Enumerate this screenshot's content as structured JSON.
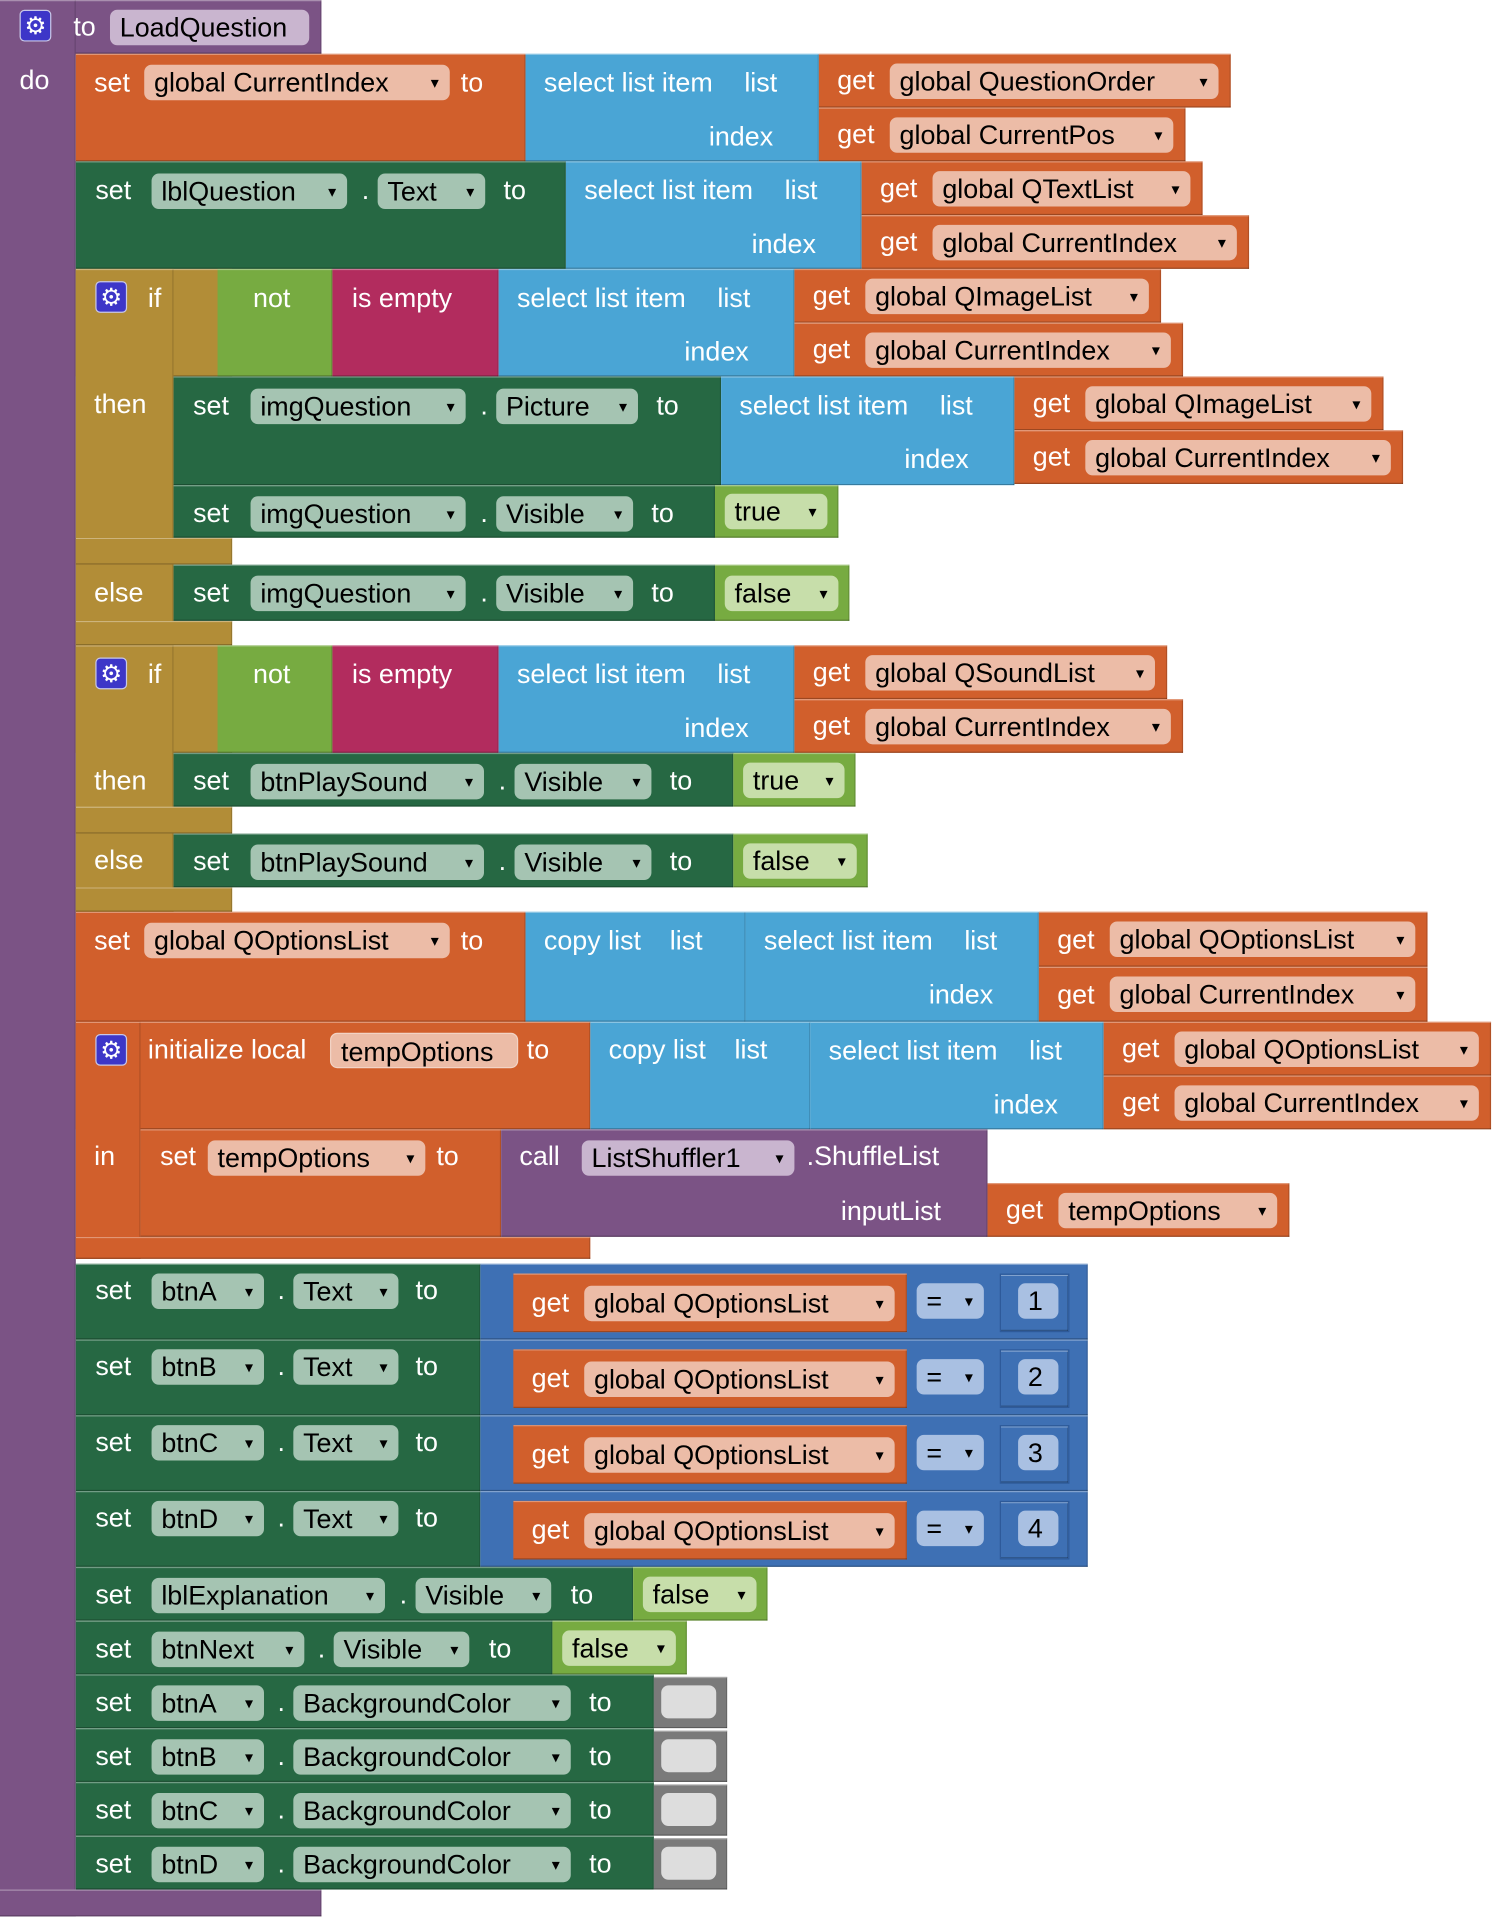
{
  "procedure": {
    "keyword": "to",
    "name": "LoadQuestion",
    "do": "do"
  },
  "kw": {
    "set": "set",
    "to": "to",
    "get": "get",
    "dot": ".",
    "select_list_item": "select list item",
    "list": "list",
    "index": "index",
    "if": "if",
    "then": "then",
    "else": "else",
    "not": "not",
    "is_empty": "is empty",
    "copy_list": "copy list",
    "initialize_local": "initialize local",
    "in": "in",
    "call": "call",
    "input_list": "inputList",
    "arrow": "▾",
    "gear": "⚙"
  },
  "s1": {
    "var": "global CurrentIndex",
    "list": "global QuestionOrder",
    "index": "global CurrentPos"
  },
  "s2": {
    "component": "lblQuestion",
    "property": "Text",
    "list": "global QTextList",
    "index": "global CurrentIndex"
  },
  "if1": {
    "list": "global QImageList",
    "index": "global CurrentIndex",
    "then1": {
      "component": "imgQuestion",
      "property": "Picture",
      "list": "global QImageList",
      "index": "global CurrentIndex"
    },
    "then2": {
      "component": "imgQuestion",
      "property": "Visible",
      "value": "true"
    },
    "else1": {
      "component": "imgQuestion",
      "property": "Visible",
      "value": "false"
    }
  },
  "if2": {
    "list": "global QSoundList",
    "index": "global CurrentIndex",
    "then1": {
      "component": "btnPlaySound",
      "property": "Visible",
      "value": "true"
    },
    "else1": {
      "component": "btnPlaySound",
      "property": "Visible",
      "value": "false"
    }
  },
  "s5": {
    "var": "global QOptionsList",
    "list": "global QOptionsList",
    "index": "global CurrentIndex"
  },
  "local": {
    "name": "tempOptions",
    "list": "global QOptionsList",
    "index": "global CurrentIndex",
    "set_var": "tempOptions",
    "call_component": "ListShuffler1",
    "call_method": ".ShuffleList",
    "arg": "tempOptions"
  },
  "text_rows": [
    {
      "component": "btnA",
      "property": "Text",
      "list": "global QOptionsList",
      "op": "=",
      "number": "1"
    },
    {
      "component": "btnB",
      "property": "Text",
      "list": "global QOptionsList",
      "op": "=",
      "number": "2"
    },
    {
      "component": "btnC",
      "property": "Text",
      "list": "global QOptionsList",
      "op": "=",
      "number": "3"
    },
    {
      "component": "btnD",
      "property": "Text",
      "list": "global QOptionsList",
      "op": "=",
      "number": "4"
    }
  ],
  "vis_rows": [
    {
      "component": "lblExplanation",
      "property": "Visible",
      "value": "false"
    },
    {
      "component": "btnNext",
      "property": "Visible",
      "value": "false"
    }
  ],
  "color_rows": [
    {
      "component": "btnA",
      "property": "BackgroundColor",
      "color": "#dddddd"
    },
    {
      "component": "btnB",
      "property": "BackgroundColor",
      "color": "#dddddd"
    },
    {
      "component": "btnC",
      "property": "BackgroundColor",
      "color": "#dddddd"
    },
    {
      "component": "btnD",
      "property": "BackgroundColor",
      "color": "#dddddd"
    }
  ],
  "colors": {
    "procedure": "#7b5385",
    "procedure_field": "#c9b5cf",
    "variable": "#d15f2c",
    "variable_field": "#ecbca7",
    "component": "#266843",
    "component_field": "#a5c4b2",
    "list": "#4aa5d5",
    "control": "#b28d37",
    "logic": "#77ab41",
    "logic_field": "#c7deaa",
    "is_empty": "#b22c5e",
    "math": "#3e70b4",
    "math_field": "#a9c0e2",
    "color_block": "#7a7a7a"
  }
}
